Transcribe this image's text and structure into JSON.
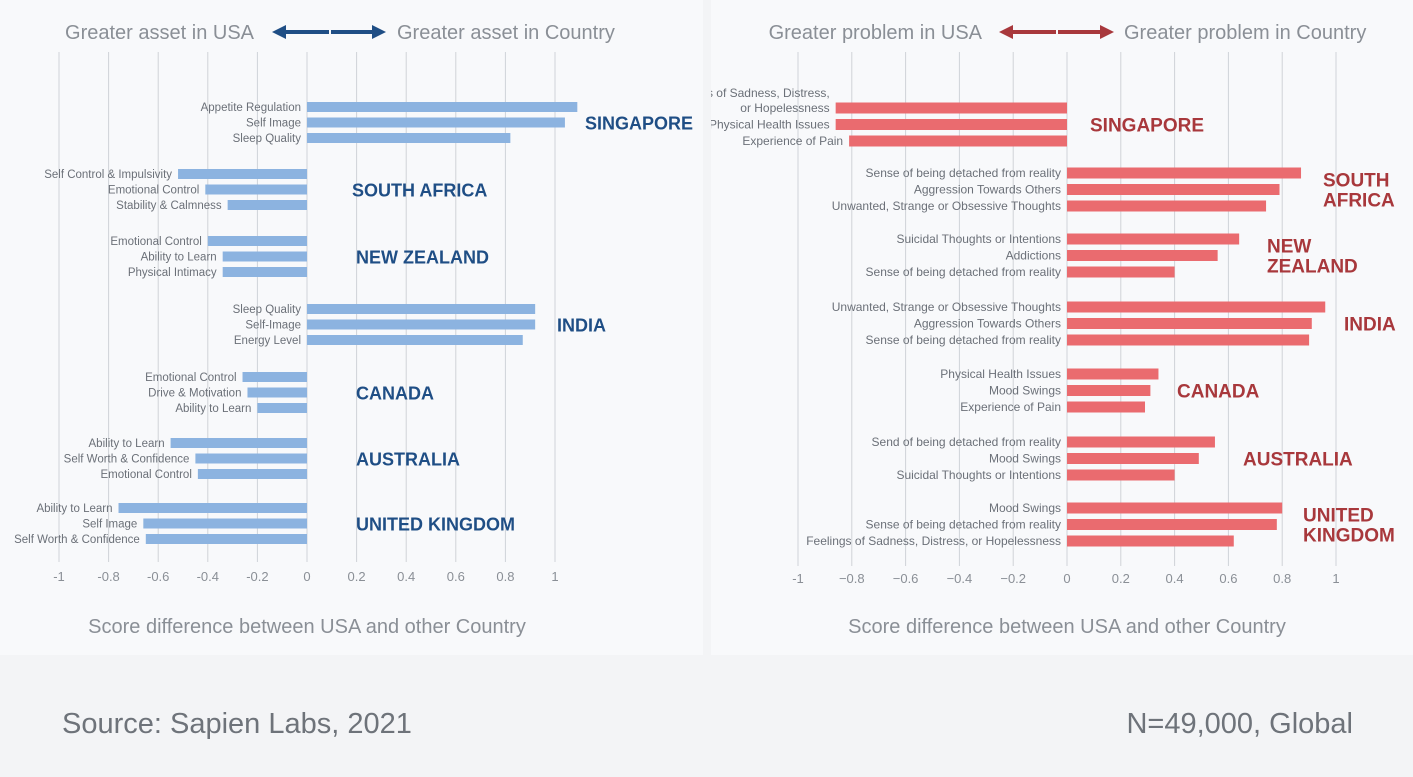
{
  "colors": {
    "left_bar": "#8cb3e0",
    "left_arrow": "#1f4e85",
    "left_country": "#1f4e85",
    "right_bar": "#ea6b6f",
    "right_arrow": "#a8383c",
    "right_country": "#a8383c",
    "grid": "#cfd3d8",
    "muted_text": "#8a8f96",
    "item_text": "#6b7078"
  },
  "footer": {
    "source": "Source: Sapien Labs, 2021",
    "n": "N=49,000, Global"
  },
  "chart_data": [
    {
      "type": "bar",
      "orientation": "horizontal",
      "header_left": "Greater asset in USA",
      "header_right": "Greater asset in Country",
      "xlabel": "Score difference between USA and other Country",
      "xlim": [
        -1,
        1.1
      ],
      "xticks": [
        -1,
        -0.8,
        -0.6,
        -0.4,
        -0.2,
        0,
        0.2,
        0.4,
        0.6,
        0.8,
        1
      ],
      "tick_labels": [
        "-1",
        "-0.8",
        "-0.6",
        "-0.4",
        "-0.2",
        "0",
        "0.2",
        "0.4",
        "0.6",
        "0.8",
        "1"
      ],
      "grid": true,
      "groups": [
        {
          "country": [
            "SINGAPORE"
          ],
          "items": [
            {
              "label": [
                "Appetite Regulation"
              ],
              "value": 1.09
            },
            {
              "label": [
                "Self Image"
              ],
              "value": 1.04
            },
            {
              "label": [
                "Sleep Quality"
              ],
              "value": 0.82
            }
          ]
        },
        {
          "country": [
            "SOUTH AFRICA"
          ],
          "items": [
            {
              "label": [
                "Self Control & Impulsivity"
              ],
              "value": -0.52
            },
            {
              "label": [
                "Emotional Control"
              ],
              "value": -0.41
            },
            {
              "label": [
                "Stability & Calmness"
              ],
              "value": -0.32
            }
          ]
        },
        {
          "country": [
            "NEW ZEALAND"
          ],
          "items": [
            {
              "label": [
                "Emotional Control"
              ],
              "value": -0.4
            },
            {
              "label": [
                "Ability to Learn"
              ],
              "value": -0.34
            },
            {
              "label": [
                "Physical Intimacy"
              ],
              "value": -0.34
            }
          ]
        },
        {
          "country": [
            "INDIA"
          ],
          "items": [
            {
              "label": [
                "Sleep Quality"
              ],
              "value": 0.92
            },
            {
              "label": [
                "Self-Image"
              ],
              "value": 0.92
            },
            {
              "label": [
                "Energy Level"
              ],
              "value": 0.87
            }
          ]
        },
        {
          "country": [
            "CANADA"
          ],
          "items": [
            {
              "label": [
                "Emotional Control"
              ],
              "value": -0.26
            },
            {
              "label": [
                "Drive & Motivation"
              ],
              "value": -0.24
            },
            {
              "label": [
                "Ability to Learn"
              ],
              "value": -0.2
            }
          ]
        },
        {
          "country": [
            "AUSTRALIA"
          ],
          "items": [
            {
              "label": [
                "Ability to Learn"
              ],
              "value": -0.55
            },
            {
              "label": [
                "Self Worth & Confidence"
              ],
              "value": -0.45
            },
            {
              "label": [
                "Emotional Control"
              ],
              "value": -0.44
            }
          ]
        },
        {
          "country": [
            "UNITED KINGDOM"
          ],
          "items": [
            {
              "label": [
                "Ability to Learn"
              ],
              "value": -0.76
            },
            {
              "label": [
                "Self Image"
              ],
              "value": -0.66
            },
            {
              "label": [
                "Self Worth & Confidence"
              ],
              "value": -0.65
            }
          ]
        }
      ]
    },
    {
      "type": "bar",
      "orientation": "horizontal",
      "header_left": "Greater problem in USA",
      "header_right": "Greater problem in Country",
      "xlabel": "Score difference between USA and other Country",
      "xlim": [
        -1,
        1.1
      ],
      "xticks": [
        -1,
        -0.8,
        -0.6,
        -0.4,
        -0.2,
        0,
        0.2,
        0.4,
        0.6,
        0.8,
        1
      ],
      "tick_labels": [
        "-1",
        "−0.8",
        "−0.6",
        "−0.4",
        "−0.2",
        "0",
        "0.2",
        "0.4",
        "0.6",
        "0.8",
        "1"
      ],
      "grid": true,
      "groups": [
        {
          "country": [
            "SINGAPORE"
          ],
          "items": [
            {
              "label": [
                "Feelings of Sadness, Distress,",
                "or Hopelessness"
              ],
              "value": -0.86
            },
            {
              "label": [
                "Physical Health Issues"
              ],
              "value": -0.86
            },
            {
              "label": [
                "Experience of Pain"
              ],
              "value": -0.81
            }
          ]
        },
        {
          "country": [
            "SOUTH",
            "AFRICA"
          ],
          "items": [
            {
              "label": [
                "Sense of being detached from reality"
              ],
              "value": 0.87
            },
            {
              "label": [
                "Aggression Towards Others"
              ],
              "value": 0.79
            },
            {
              "label": [
                "Unwanted, Strange or Obsessive Thoughts"
              ],
              "value": 0.74
            }
          ]
        },
        {
          "country": [
            "NEW",
            "ZEALAND"
          ],
          "items": [
            {
              "label": [
                "Suicidal Thoughts or Intentions"
              ],
              "value": 0.64
            },
            {
              "label": [
                "Addictions"
              ],
              "value": 0.56
            },
            {
              "label": [
                "Sense of being detached from reality"
              ],
              "value": 0.4
            }
          ]
        },
        {
          "country": [
            "INDIA"
          ],
          "items": [
            {
              "label": [
                "Unwanted, Strange or Obsessive Thoughts"
              ],
              "value": 0.96
            },
            {
              "label": [
                "Aggression Towards Others"
              ],
              "value": 0.91
            },
            {
              "label": [
                "Sense of being detached from reality"
              ],
              "value": 0.9
            }
          ]
        },
        {
          "country": [
            "CANADA"
          ],
          "items": [
            {
              "label": [
                "Physical Health Issues"
              ],
              "value": 0.34
            },
            {
              "label": [
                "Mood Swings"
              ],
              "value": 0.31
            },
            {
              "label": [
                "Experience of Pain"
              ],
              "value": 0.29
            }
          ]
        },
        {
          "country": [
            "AUSTRALIA"
          ],
          "items": [
            {
              "label": [
                "Send of being detached from reality"
              ],
              "value": 0.55
            },
            {
              "label": [
                "Mood Swings"
              ],
              "value": 0.49
            },
            {
              "label": [
                "Suicidal Thoughts or Intentions"
              ],
              "value": 0.4
            }
          ]
        },
        {
          "country": [
            "UNITED",
            "KINGDOM"
          ],
          "items": [
            {
              "label": [
                "Mood Swings"
              ],
              "value": 0.8
            },
            {
              "label": [
                "Sense of being detached from reality"
              ],
              "value": 0.78
            },
            {
              "label": [
                "Feelings of Sadness, Distress, or Hopelessness"
              ],
              "value": 0.62
            }
          ]
        }
      ]
    }
  ]
}
